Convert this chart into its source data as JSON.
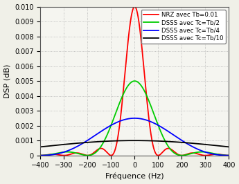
{
  "Tb": 0.01,
  "Tc_list": [
    0.005,
    0.0025,
    0.001
  ],
  "freq_min": -400,
  "freq_max": 400,
  "num_points": 20000,
  "nrz_color": "#ff0000",
  "dsss2_color": "#00cc00",
  "dsss4_color": "#0000ff",
  "dsss10_color": "#000000",
  "xlabel": "Fréquence (Hz)",
  "ylabel": "DSP (dB)",
  "ylim": [
    0,
    0.01
  ],
  "xlim": [
    -400,
    400
  ],
  "xticks": [
    -400,
    -300,
    -200,
    -100,
    0,
    100,
    200,
    300,
    400
  ],
  "yticks": [
    0,
    0.001,
    0.002,
    0.003,
    0.004,
    0.005,
    0.006,
    0.007,
    0.008,
    0.009,
    0.01
  ],
  "legend_labels": [
    "NRZ avec Tb=0.01",
    "DSSS avec Tc=Tb/2",
    "DSSS avec Tc=Tb/4",
    "DSSS avec Tc=Tb/10"
  ],
  "grid_color": "#b0b0b0",
  "bg_color": "#f5f5f0",
  "fig_bg": "#f0f0e8",
  "linewidth": 1.3,
  "xlabel_fontsize": 8,
  "ylabel_fontsize": 8,
  "tick_fontsize": 7,
  "legend_fontsize": 6.2
}
